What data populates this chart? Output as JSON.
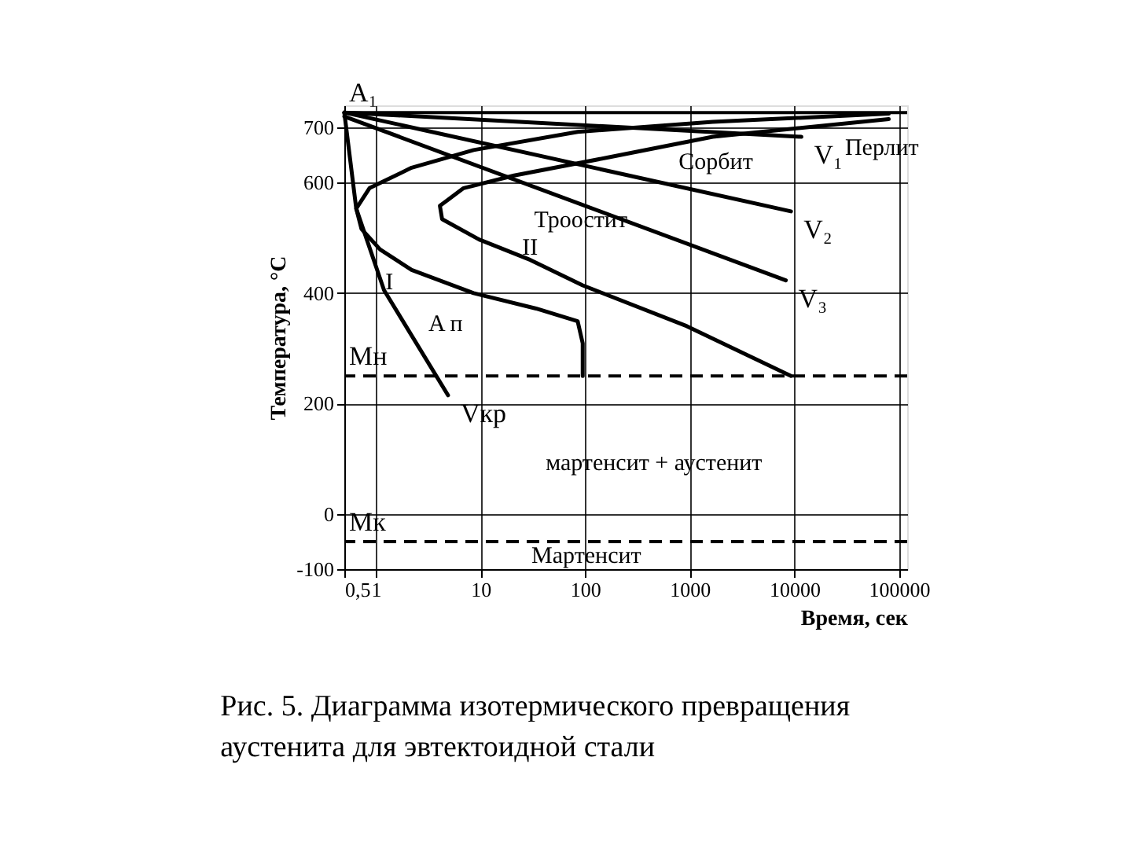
{
  "chart_data": {
    "type": "line",
    "title": "Рис. 5. Диаграмма изотермического превращения аустенита для эвтектоидной стали",
    "xlabel": "Время, сек",
    "ylabel": "Температура, °C",
    "log": "x",
    "grid": true,
    "marker": "none",
    "line_style": "solid",
    "xlim": [
      0.5,
      120000
    ],
    "xticks": [
      {
        "value": 0.5,
        "label": "0,5"
      },
      1,
      10,
      100,
      1000,
      10000,
      100000
    ],
    "ylim": [
      -100,
      740
    ],
    "yticks": [
      -100,
      0,
      200,
      400,
      600,
      700
    ],
    "series": [
      {
        "color": "#000000",
        "x": [
          80000,
          1660,
          85,
          8.6,
          2.2,
          0.87,
          0.65,
          0.73,
          1.1,
          2.2,
          8.6,
          34,
          85,
          95,
          95
        ],
        "values": [
          725,
          710,
          692,
          659,
          627,
          590,
          553,
          516,
          479,
          442,
          400,
          372,
          349,
          309,
          250
        ]
      },
      {
        "color": "#000000",
        "x": [
          80000,
          1660,
          170,
          21,
          6.9,
          4.1,
          4.3,
          9.7,
          30,
          95,
          940,
          9300
        ],
        "values": [
          715,
          683,
          646,
          613,
          590,
          558,
          534,
          497,
          460,
          414,
          340,
          250
        ]
      },
      {
        "name": "V₁",
        "color": "#000000",
        "x": [
          0.5,
          11700
        ],
        "values": [
          727,
          683
        ]
      },
      {
        "name": "V₂",
        "color": "#000000",
        "x": [
          0.5,
          9300
        ],
        "values": [
          727,
          548
        ]
      },
      {
        "name": "V₃",
        "color": "#000000",
        "x": [
          0.5,
          8300
        ],
        "values": [
          720,
          423
        ]
      },
      {
        "name": "Vкр",
        "color": "#000000",
        "x": [
          0.5,
          0.65,
          1.2,
          4.9
        ],
        "values": [
          727,
          553,
          405,
          215
        ]
      }
    ],
    "ref_lines": [
      {
        "axis": "y",
        "value": 727,
        "label": "A₁",
        "line_style": "solid",
        "color": "#000000"
      },
      {
        "axis": "y",
        "value": 250,
        "label": "Mн",
        "line_style": "dashed",
        "color": "#000000"
      },
      {
        "axis": "y",
        "value": -50,
        "label": "Mк",
        "line_style": "dashed",
        "color": "#000000"
      }
    ],
    "annotations": [
      "Перлит",
      "Сорбит",
      "Троостит",
      "II",
      "I",
      "A п",
      "мартенсит + аустенит",
      "Мартенсит"
    ]
  }
}
